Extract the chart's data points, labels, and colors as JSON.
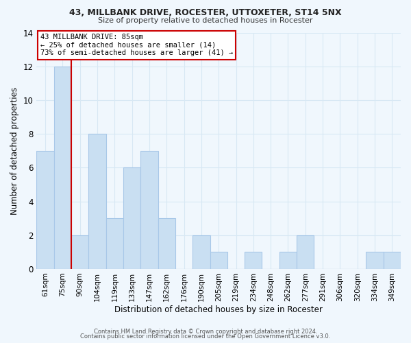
{
  "title1": "43, MILLBANK DRIVE, ROCESTER, UTTOXETER, ST14 5NX",
  "title2": "Size of property relative to detached houses in Rocester",
  "xlabel": "Distribution of detached houses by size in Rocester",
  "ylabel": "Number of detached properties",
  "bar_labels": [
    "61sqm",
    "75sqm",
    "90sqm",
    "104sqm",
    "119sqm",
    "133sqm",
    "147sqm",
    "162sqm",
    "176sqm",
    "190sqm",
    "205sqm",
    "219sqm",
    "234sqm",
    "248sqm",
    "262sqm",
    "277sqm",
    "291sqm",
    "306sqm",
    "320sqm",
    "334sqm",
    "349sqm"
  ],
  "bar_values": [
    7,
    12,
    2,
    8,
    3,
    6,
    7,
    3,
    0,
    2,
    1,
    0,
    1,
    0,
    1,
    2,
    0,
    0,
    0,
    1,
    1
  ],
  "bar_color": "#c9dff2",
  "bar_edge_color": "#a8c8e8",
  "vline_x": 2,
  "vline_color": "#cc0000",
  "ylim": [
    0,
    14
  ],
  "yticks": [
    0,
    2,
    4,
    6,
    8,
    10,
    12,
    14
  ],
  "annotation_lines": [
    "43 MILLBANK DRIVE: 85sqm",
    "← 25% of detached houses are smaller (14)",
    "73% of semi-detached houses are larger (41) →"
  ],
  "footer_line1": "Contains HM Land Registry data © Crown copyright and database right 2024.",
  "footer_line2": "Contains public sector information licensed under the Open Government Licence v3.0.",
  "grid_color": "#d8e8f4",
  "background_color": "#f0f7fd"
}
